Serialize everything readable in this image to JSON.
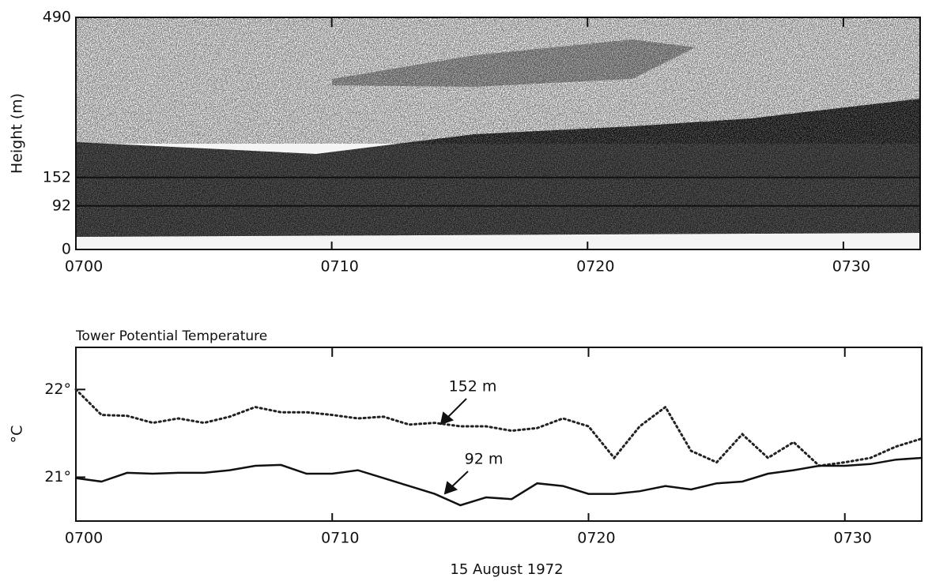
{
  "chart_data": [
    {
      "type": "echogram",
      "ylabel": "Height (m)",
      "xlim": [
        0,
        33
      ],
      "xticks": [
        {
          "value": 0,
          "label": "0700"
        },
        {
          "value": 10,
          "label": "0710"
        },
        {
          "value": 20,
          "label": "0720"
        },
        {
          "value": 30,
          "label": "0730"
        }
      ],
      "ylim": [
        0,
        490
      ],
      "yticks": [
        0,
        92,
        152,
        490
      ],
      "grid": true
    },
    {
      "type": "line",
      "title": "Tower Potential Temperature",
      "ylabel": "°C",
      "xlabel": "15 August 1972",
      "x": [
        0,
        1,
        2,
        3,
        4,
        5,
        6,
        7,
        8,
        9,
        10,
        11,
        12,
        13,
        14,
        15,
        16,
        17,
        18,
        19,
        20,
        21,
        22,
        23,
        24,
        25,
        26,
        27,
        28,
        29,
        30,
        31,
        32,
        33
      ],
      "series": [
        {
          "name": "152 m",
          "color": "#222222",
          "style": "dotted",
          "values": [
            22.0,
            21.71,
            21.7,
            21.62,
            21.67,
            21.62,
            21.69,
            21.8,
            21.74,
            21.74,
            21.71,
            21.67,
            21.69,
            21.6,
            21.62,
            21.58,
            21.58,
            21.53,
            21.56,
            21.67,
            21.58,
            21.22,
            21.58,
            21.8,
            21.3,
            21.17,
            21.49,
            21.22,
            21.4,
            21.13,
            21.17,
            21.22,
            21.35,
            21.44
          ]
        },
        {
          "name": "92 m",
          "color": "#111111",
          "style": "solid",
          "values": [
            20.99,
            20.95,
            21.05,
            21.04,
            21.05,
            21.05,
            21.08,
            21.13,
            21.14,
            21.04,
            21.04,
            21.08,
            20.99,
            20.9,
            20.81,
            20.68,
            20.77,
            20.75,
            20.93,
            20.9,
            20.81,
            20.81,
            20.84,
            20.9,
            20.86,
            20.93,
            20.95,
            21.04,
            21.08,
            21.13,
            21.13,
            21.15,
            21.2,
            21.22
          ]
        }
      ],
      "xlim": [
        0,
        33
      ],
      "xticks": [
        {
          "value": 0,
          "label": "0700"
        },
        {
          "value": 10,
          "label": "0710"
        },
        {
          "value": 20,
          "label": "0720"
        },
        {
          "value": 30,
          "label": "0730"
        }
      ],
      "ylim": [
        20.5,
        22.48
      ],
      "yticks": [
        {
          "value": 21,
          "label": "21°"
        },
        {
          "value": 22,
          "label": "22°"
        }
      ]
    }
  ]
}
